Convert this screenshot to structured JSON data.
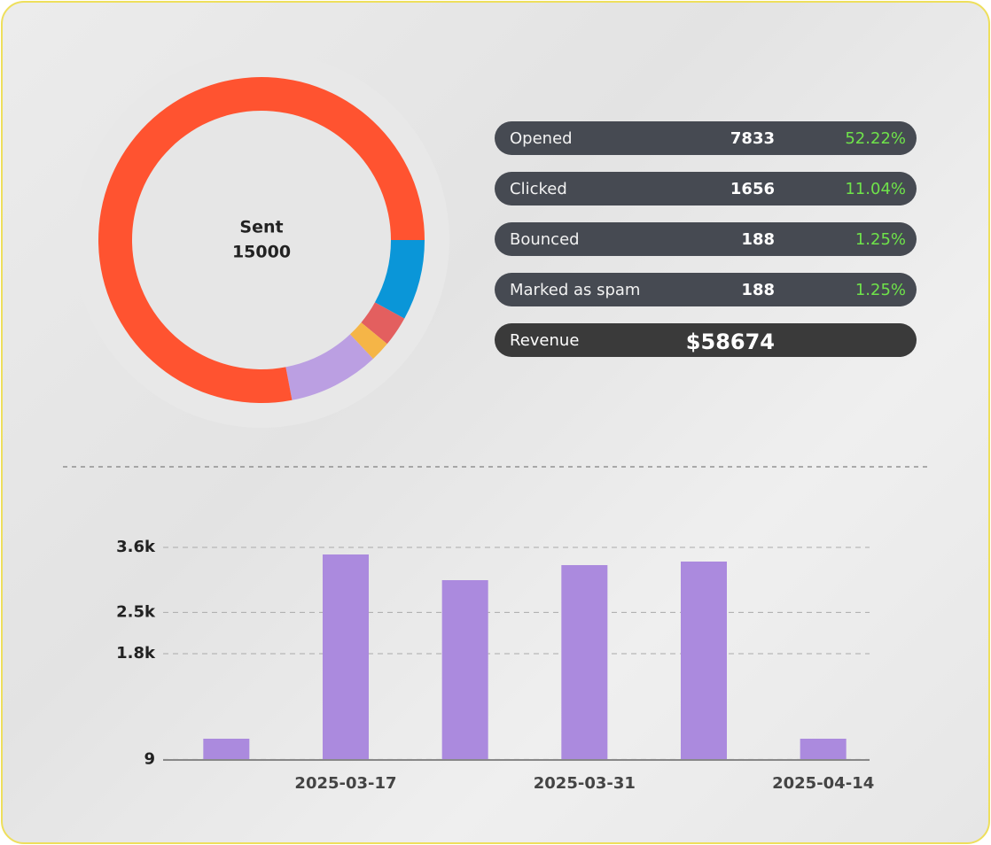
{
  "chart_data": [
    {
      "type": "donut",
      "center_label": "Sent",
      "center_value": "15000",
      "values": [
        8,
        3,
        2,
        9,
        78
      ],
      "colors": [
        "#0a96d8",
        "#e35f5f",
        "#f5b547",
        "#bb9fe2",
        "#ff5330"
      ]
    },
    {
      "type": "bar",
      "categories": [
        null,
        "2025-03-17",
        null,
        "2025-03-31",
        null,
        "2025-04-14"
      ],
      "values": [
        360,
        3480,
        3045,
        3300,
        3360,
        360
      ],
      "color": "#ab8ade",
      "ylim": [
        0,
        3600
      ],
      "yticks": [
        9,
        {
          "value": 1800,
          "label": "1.8k"
        },
        {
          "value": 2500,
          "label": "2.5k"
        },
        {
          "value": 3600,
          "label": "3.6k"
        }
      ],
      "grid": true
    }
  ],
  "stats": [
    {
      "name": "Opened",
      "count": "7833",
      "percent": "52.22%"
    },
    {
      "name": "Clicked",
      "count": "1656",
      "percent": "11.04%"
    },
    {
      "name": "Bounced",
      "count": "188",
      "percent": "1.25%"
    },
    {
      "name": "Marked as spam",
      "count": "188",
      "percent": "1.25%"
    }
  ],
  "revenue": {
    "name": "Revenue",
    "value": "$58674"
  }
}
